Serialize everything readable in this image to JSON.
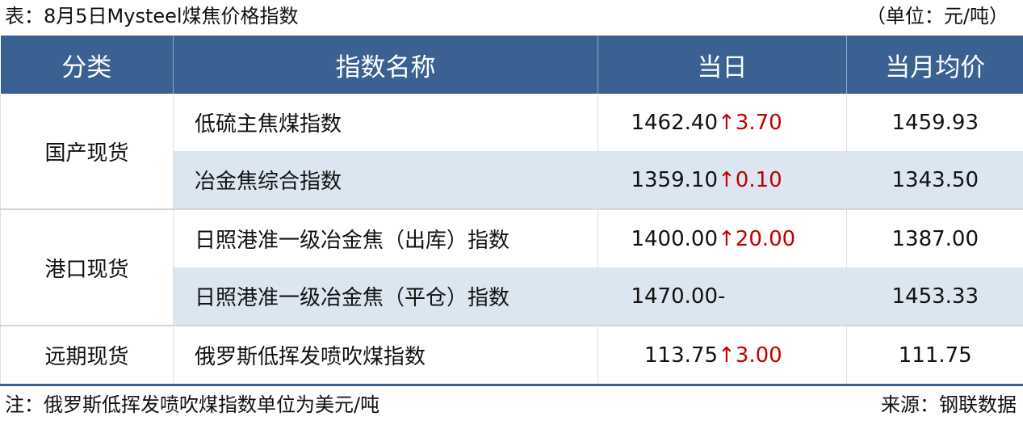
{
  "title": "表：8月5日Mysteel煤焦价格指数",
  "unit": "（单位：元/吨）",
  "headers": [
    "分类",
    "指数名称",
    "当日",
    "当月均价"
  ],
  "groups": [
    {
      "category": "国产现货",
      "rows": [
        {
          "name": "低硫主焦煤指数",
          "today": "1462.40",
          "change": "↑3.70",
          "avg": "1459.93",
          "direction": "up"
        },
        {
          "name": "冶金焦综合指数",
          "today": "1359.10",
          "change": "↑0.10",
          "avg": "1343.50",
          "direction": "up"
        }
      ]
    },
    {
      "category": "港口现货",
      "rows": [
        {
          "name": "日照港准一级冶金焦（出库）指数",
          "today": "1400.00",
          "change": "↑20.00",
          "avg": "1387.00",
          "direction": "up"
        },
        {
          "name": "日照港准一级冶金焦（平仓）指数",
          "today": "1470.00",
          "change": "-",
          "avg": "1453.33",
          "direction": "flat"
        }
      ]
    },
    {
      "category": "远期现货",
      "rows": [
        {
          "name": "俄罗斯低挥发喷吹煤指数",
          "today": "113.75",
          "change": "↑3.00",
          "avg": "111.75",
          "direction": "up"
        }
      ]
    }
  ],
  "note": "注：俄罗斯低挥发喷吹煤指数单位为美元/吨",
  "source": "来源：钢联数据",
  "colors": {
    "header": "#3a6191",
    "alt_row": "#dce6f1",
    "up": "#c00000"
  }
}
